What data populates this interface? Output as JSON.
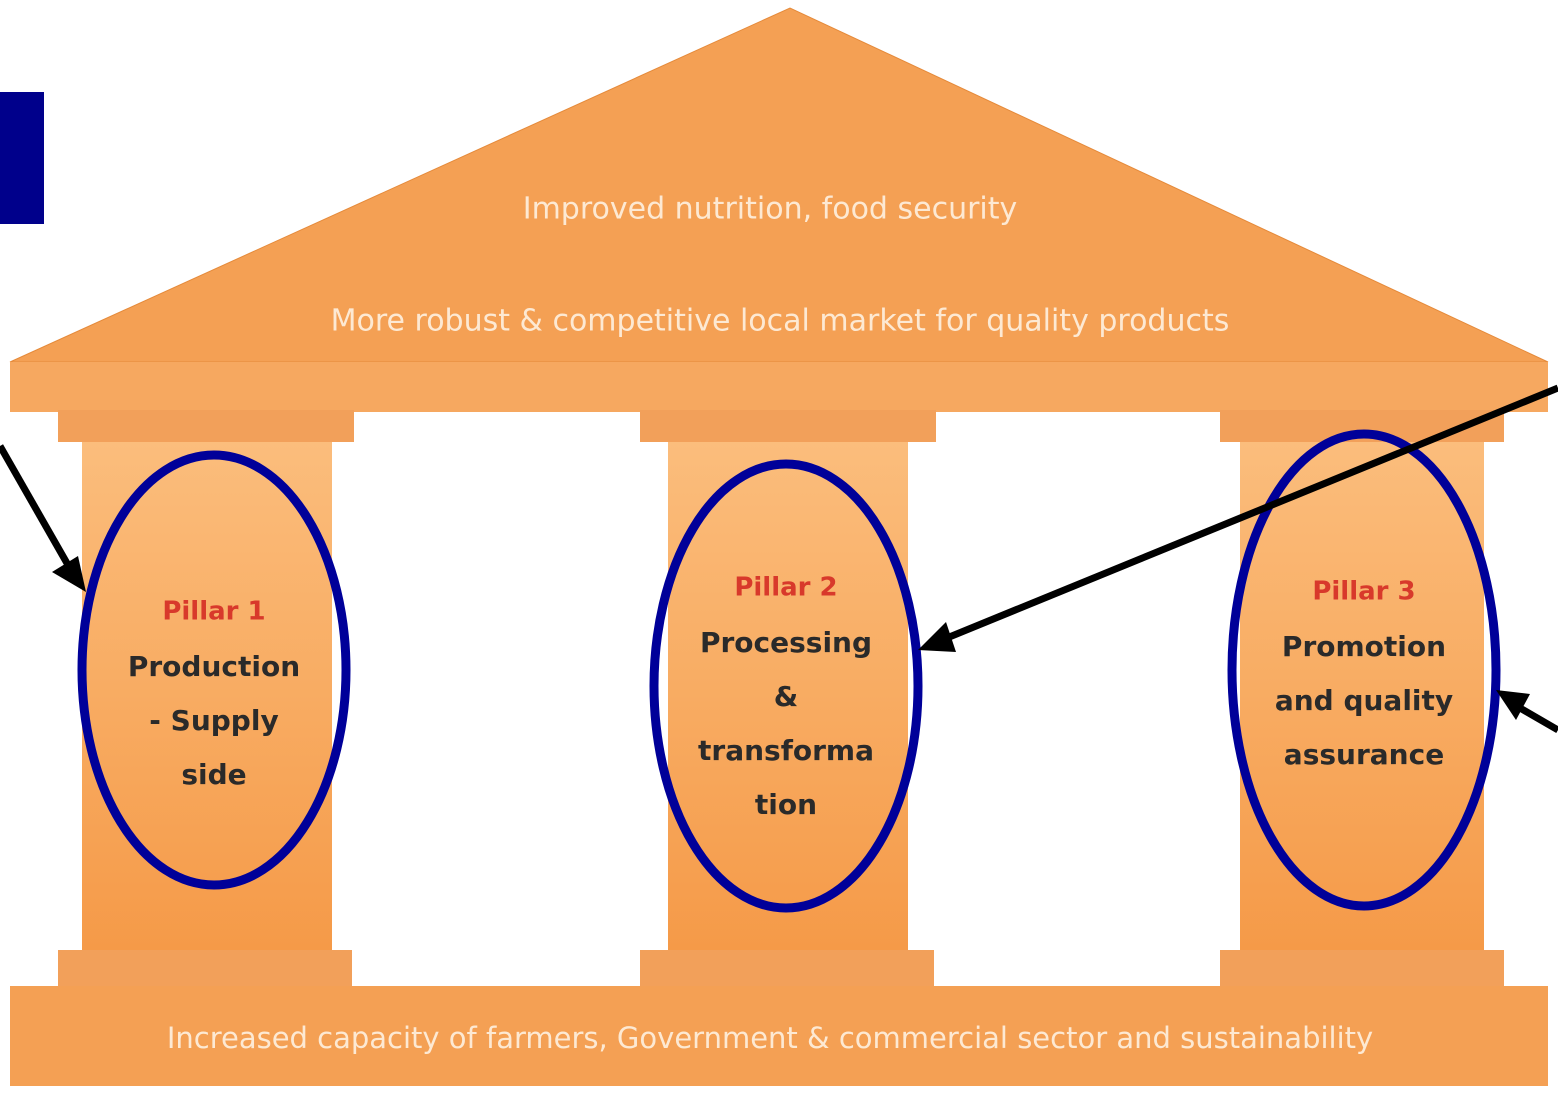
{
  "roof": {
    "lines": [
      "Improved nutrition, food security",
      "More robust & competitive local market for quality products"
    ]
  },
  "pillars": [
    {
      "title": "Pillar 1",
      "lines": [
        "Production",
        "- Supply",
        "side"
      ]
    },
    {
      "title": "Pillar 2",
      "lines": [
        "Processing",
        "&",
        "transforma",
        "tion"
      ]
    },
    {
      "title": "Pillar 3",
      "lines": [
        "Promotion",
        "and quality",
        "assurance"
      ]
    }
  ],
  "base": {
    "text": "Increased capacity of farmers, Government & commercial sector and sustainability"
  }
}
